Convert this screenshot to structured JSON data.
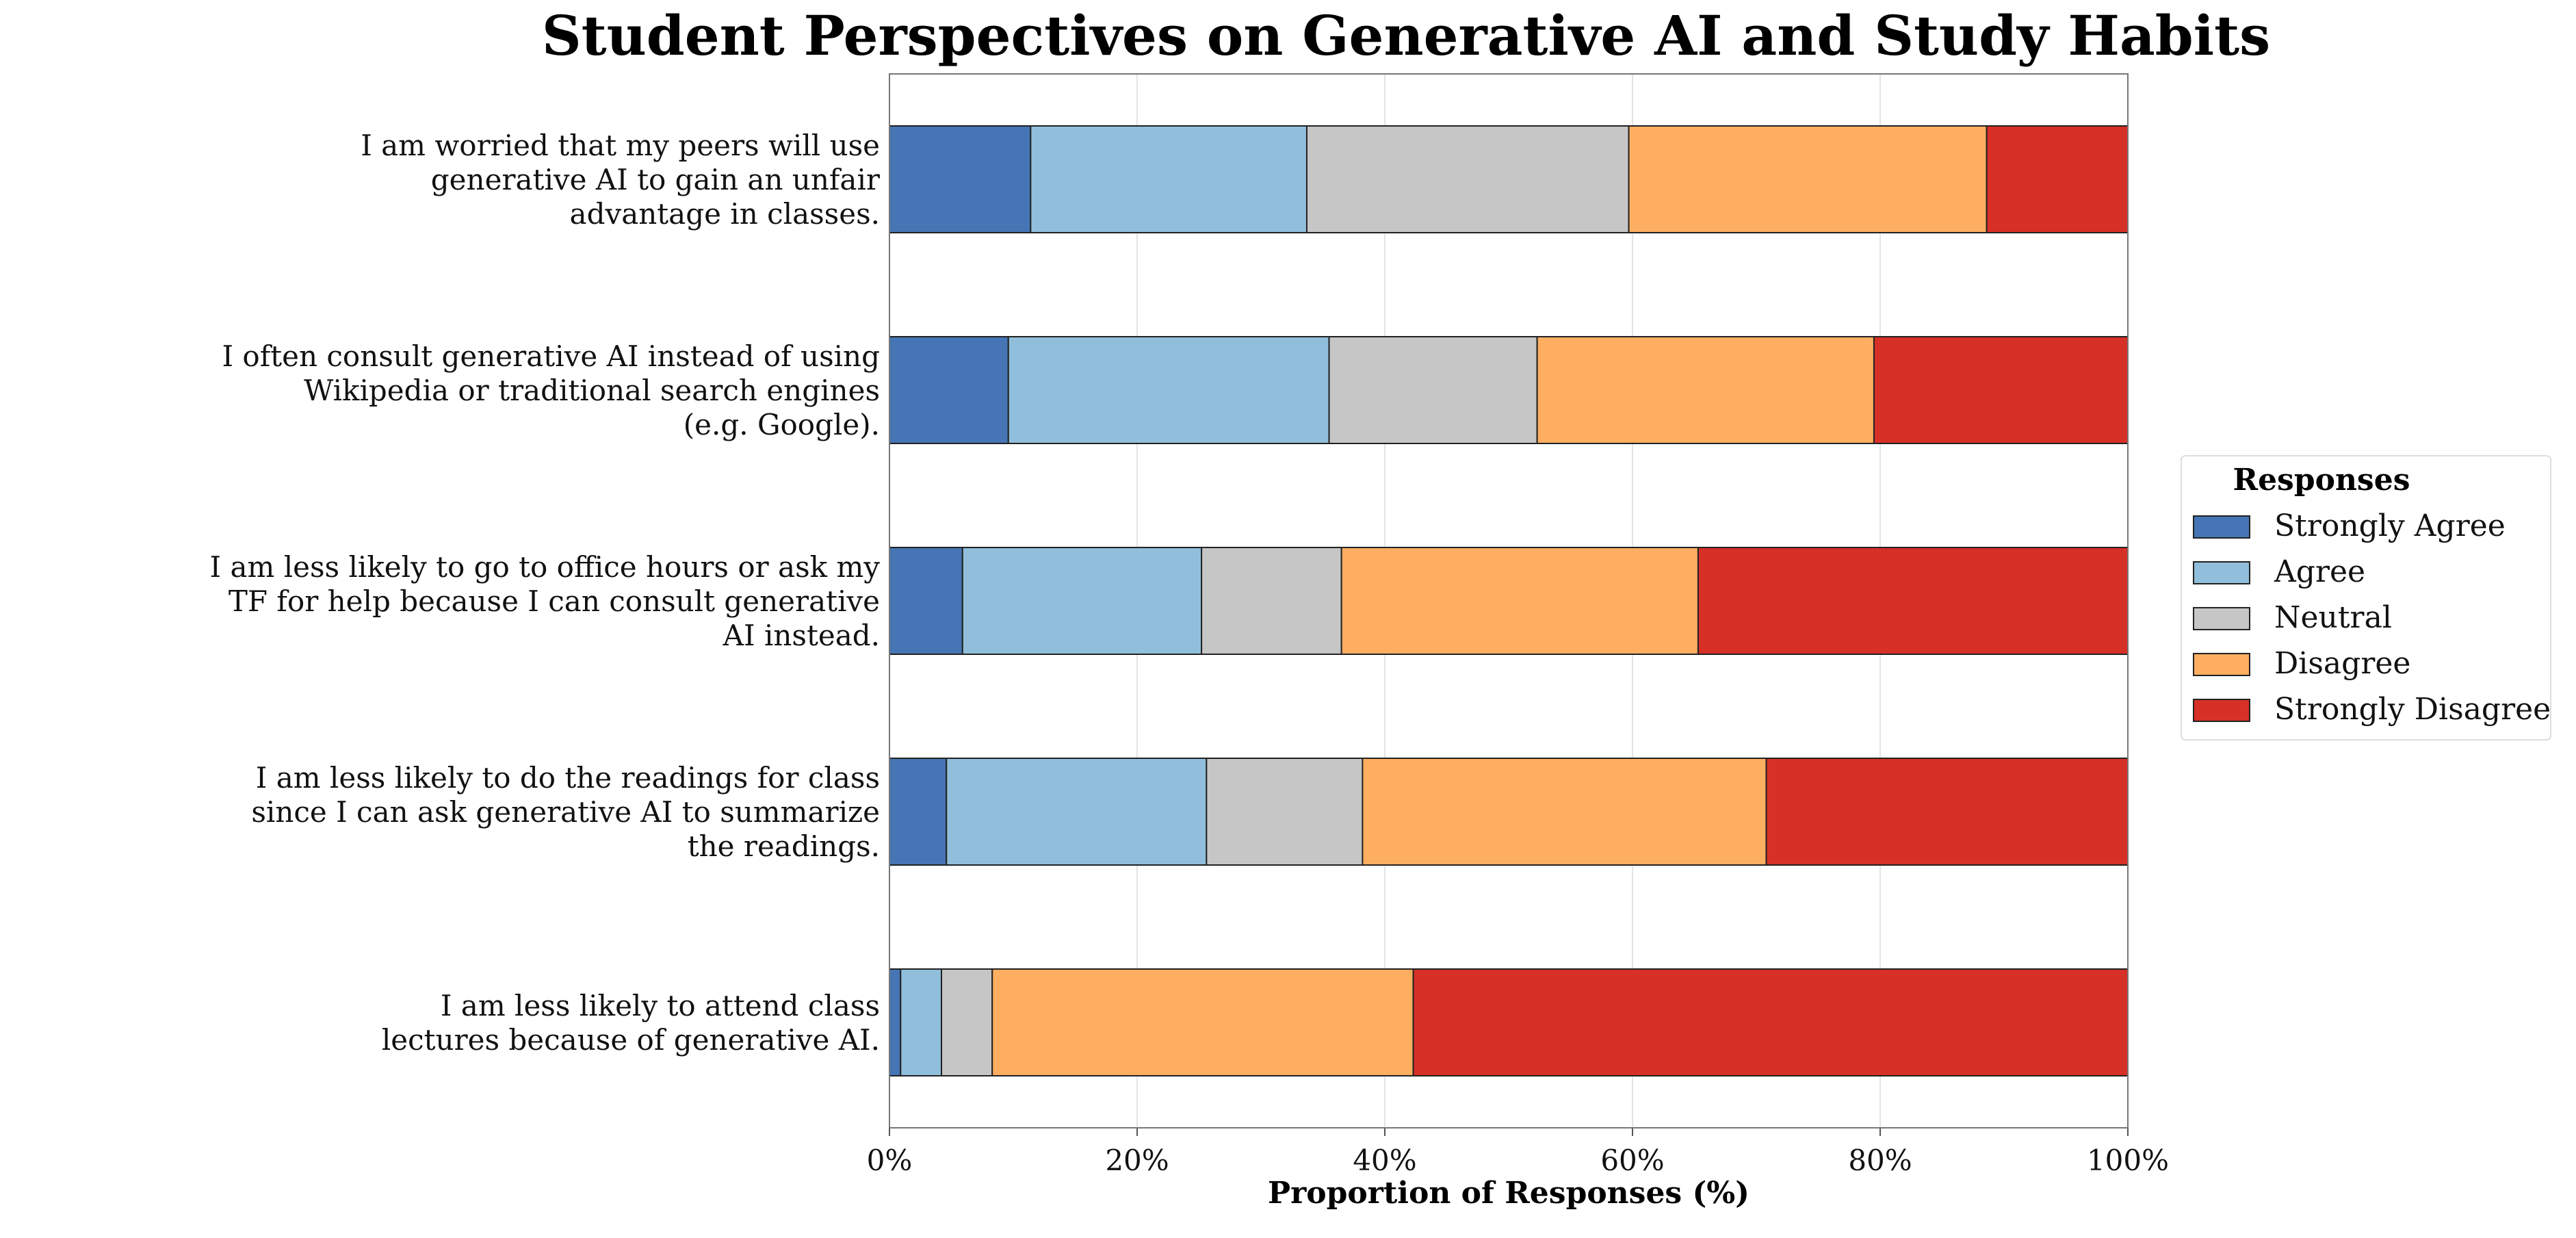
{
  "chart_data": {
    "type": "bar",
    "orientation": "horizontal",
    "stacked": true,
    "title": "Student Perspectives on Generative AI and Study Habits",
    "xlabel": "Proportion of Responses (%)",
    "ylabel": "",
    "xlim": [
      0,
      100
    ],
    "xticks": [
      "0%",
      "20%",
      "40%",
      "60%",
      "80%",
      "100%"
    ],
    "grid": "vertical",
    "legend": {
      "title": "Responses",
      "placement": "right"
    },
    "categories": [
      [
        "I am worried that my peers will use",
        "generative AI to gain an unfair",
        "advantage in classes."
      ],
      [
        "I often consult generative AI instead of using",
        "Wikipedia or traditional search engines",
        "(e.g. Google)."
      ],
      [
        "I am less likely to go to office hours or ask my",
        "TF for help because I can consult generative",
        "AI instead."
      ],
      [
        "I am less likely to do the readings for class",
        "since I can ask generative AI to summarize",
        "the readings."
      ],
      [
        "I am less likely to attend class",
        "lectures because of generative AI."
      ]
    ],
    "series": [
      {
        "name": "Strongly Agree",
        "color": "#4575b4",
        "values": [
          11.4,
          9.6,
          5.9,
          4.6,
          0.9
        ]
      },
      {
        "name": "Agree",
        "color": "#91bfdb",
        "values": [
          22.3,
          25.9,
          19.3,
          21.0,
          3.3
        ]
      },
      {
        "name": "Neutral",
        "color": "#c6c6c6",
        "values": [
          26.0,
          16.8,
          11.3,
          12.6,
          4.1
        ]
      },
      {
        "name": "Disagree",
        "color": "#fdae61",
        "values": [
          28.9,
          27.2,
          28.8,
          32.6,
          34.0
        ]
      },
      {
        "name": "Strongly Disagree",
        "color": "#d73027",
        "values": [
          11.4,
          20.5,
          34.7,
          29.2,
          57.7
        ]
      }
    ]
  }
}
